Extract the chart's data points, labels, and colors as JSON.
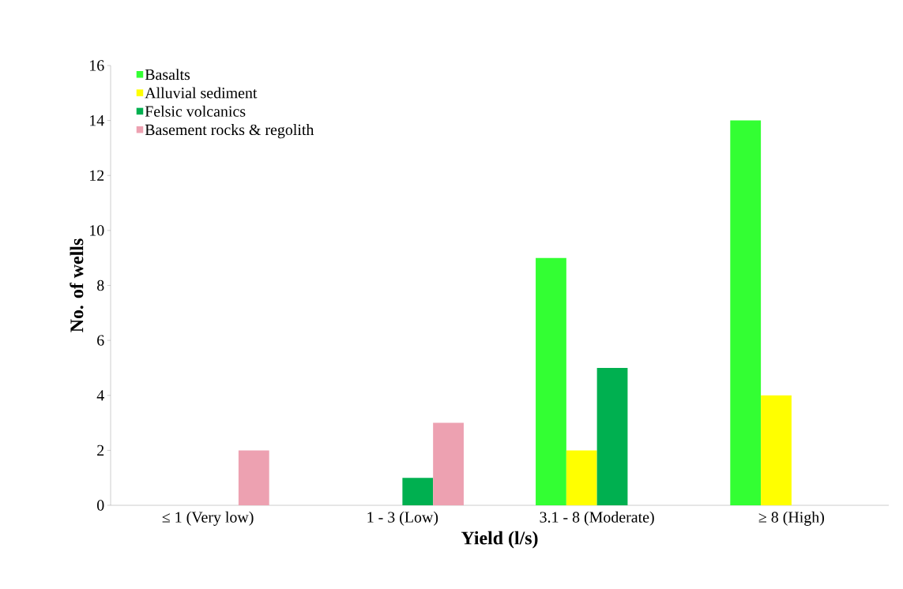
{
  "chart_data": {
    "type": "bar",
    "xlabel": "Yield (l/s)",
    "ylabel": "No. of wells",
    "categories": [
      "≤ 1 (Very low)",
      "1 - 3 (Low)",
      "3.1 - 8 (Moderate)",
      "≥ 8 (High)"
    ],
    "series": [
      {
        "name": "Basalts",
        "color": "#33ff33",
        "values": [
          0,
          0,
          9,
          14
        ]
      },
      {
        "name": "Alluvial sediment",
        "color": "#ffff00",
        "values": [
          0,
          0,
          2,
          4
        ]
      },
      {
        "name": "Felsic volcanics",
        "color": "#00b050",
        "values": [
          0,
          1,
          5,
          0
        ]
      },
      {
        "name": "Basement rocks & regolith",
        "color": "#eda1b1",
        "values": [
          2,
          3,
          0,
          0
        ]
      }
    ],
    "ylim": [
      0,
      16
    ],
    "yticks": [
      0,
      2,
      4,
      6,
      8,
      10,
      12,
      14,
      16
    ],
    "legend": "top left"
  }
}
